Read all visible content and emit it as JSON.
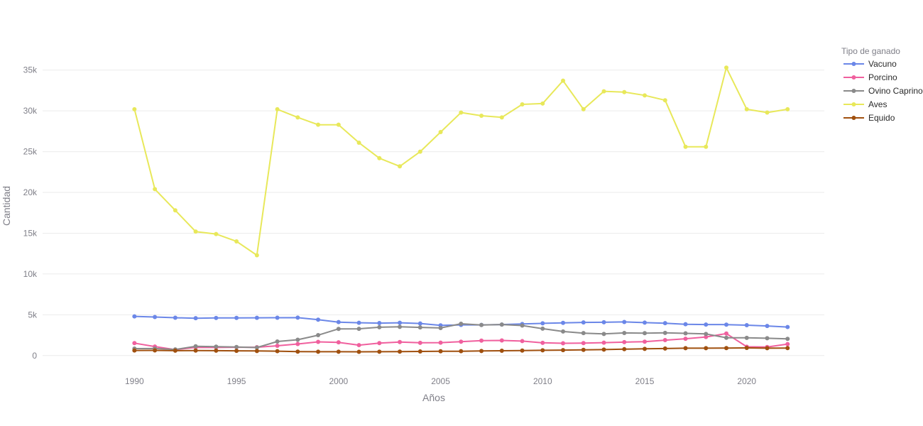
{
  "chart_data": {
    "type": "line",
    "xlabel": "Años",
    "ylabel": "Cantidad",
    "xlim": [
      1985.5,
      2023.8
    ],
    "ylim": [
      -1500,
      37500
    ],
    "x_ticks": [
      1990,
      1995,
      2000,
      2005,
      2010,
      2015,
      2020
    ],
    "x_tick_labels": [
      "1990",
      "1995",
      "2000",
      "2005",
      "2010",
      "2015",
      "2020"
    ],
    "y_ticks": [
      0,
      5000,
      10000,
      15000,
      20000,
      25000,
      30000,
      35000
    ],
    "y_tick_labels": [
      "0",
      "5k",
      "10k",
      "15k",
      "20k",
      "25k",
      "30k",
      "35k"
    ],
    "grid": true,
    "legend": {
      "title": "Tipo de ganado",
      "placement": "right"
    },
    "x": [
      1990,
      1991,
      1992,
      1993,
      1994,
      1995,
      1996,
      1997,
      1998,
      1999,
      2000,
      2001,
      2002,
      2003,
      2004,
      2005,
      2006,
      2007,
      2008,
      2009,
      2010,
      2011,
      2012,
      2013,
      2014,
      2015,
      2016,
      2017,
      2018,
      2019,
      2020,
      2021,
      2022
    ],
    "series": [
      {
        "name": "Vacuno",
        "color": "#6b87e8",
        "values": [
          4800,
          4720,
          4640,
          4580,
          4610,
          4620,
          4630,
          4640,
          4650,
          4400,
          4100,
          4020,
          3980,
          4020,
          3930,
          3700,
          3760,
          3760,
          3800,
          3870,
          3950,
          4010,
          4060,
          4080,
          4120,
          4040,
          3970,
          3840,
          3800,
          3790,
          3720,
          3630,
          3500
        ]
      },
      {
        "name": "Porcino",
        "color": "#f0609e",
        "values": [
          1520,
          1100,
          720,
          1000,
          990,
          1020,
          1020,
          1200,
          1420,
          1680,
          1620,
          1280,
          1530,
          1660,
          1560,
          1580,
          1700,
          1830,
          1850,
          1770,
          1560,
          1500,
          1520,
          1580,
          1640,
          1700,
          1890,
          2060,
          2280,
          2700,
          1080,
          1050,
          1410
        ]
      },
      {
        "name": "Ovino Caprino",
        "color": "#8a8a8a",
        "values": [
          850,
          860,
          750,
          1130,
          1090,
          1050,
          980,
          1720,
          1940,
          2500,
          3270,
          3280,
          3470,
          3520,
          3450,
          3380,
          3900,
          3750,
          3800,
          3680,
          3300,
          2950,
          2750,
          2650,
          2770,
          2740,
          2780,
          2720,
          2650,
          2180,
          2170,
          2120,
          2050
        ]
      },
      {
        "name": "Aves",
        "color": "#e8e85a",
        "values": [
          30200,
          20400,
          17800,
          15200,
          14900,
          14000,
          12300,
          30200,
          29200,
          28300,
          28300,
          26100,
          24200,
          23200,
          25000,
          27400,
          29800,
          29400,
          29200,
          30800,
          30900,
          33700,
          30200,
          32400,
          32300,
          31900,
          31300,
          25600,
          25600,
          35300,
          30200,
          29800,
          30200
        ]
      },
      {
        "name": "Equido",
        "color": "#a0500f",
        "values": [
          620,
          630,
          600,
          610,
          600,
          580,
          560,
          540,
          480,
          470,
          470,
          460,
          470,
          480,
          500,
          520,
          530,
          560,
          590,
          610,
          640,
          670,
          700,
          730,
          780,
          820,
          860,
          900,
          900,
          920,
          940,
          900,
          920
        ]
      }
    ]
  }
}
